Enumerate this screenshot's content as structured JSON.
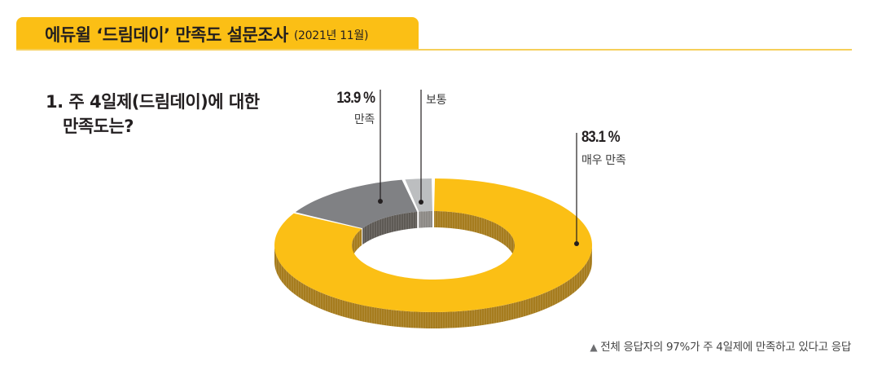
{
  "header": {
    "title": "에듀윌 ‘드림데이’ 만족도 설문조사",
    "date": "(2021년 11월)"
  },
  "question": {
    "line1": "1. 주 4일제(드림데이)에 대한",
    "line2": "만족도는?"
  },
  "labels": {
    "very_satisfied": {
      "pct": "83.1 %",
      "name": "매우 만족"
    },
    "satisfied": {
      "pct": "13.9 %",
      "name": "만족"
    },
    "neutral": {
      "name": "보통"
    }
  },
  "footnote": {
    "icon": "triangle-up-icon",
    "marker": "▲",
    "text": "전체 응답자의 97%가 주 4일제에 만족하고 있다고 응답"
  },
  "colors": {
    "accent": "#fbbf15",
    "rule": "#f6cf5a",
    "very_satisfied": "#fbbf15",
    "very_satisfied_side": "#a67c1e",
    "satisfied": "#808184",
    "satisfied_side": "#5e5a55",
    "neutral": "#bcbec0",
    "neutral_side": "#8d8a86",
    "leader": "#231f20"
  },
  "chart_data": {
    "type": "pie",
    "subtype": "3d-donut",
    "title": "1. 주 4일제(드림데이)에 대한 만족도는?",
    "categories": [
      "매우 만족",
      "만족",
      "보통"
    ],
    "values": [
      83.1,
      13.9,
      3.0
    ],
    "value_labels": [
      "83.1 %",
      "13.9 %",
      ""
    ],
    "unit": "%",
    "annotation": "전체 응답자의 97%가 주 4일제에 만족하고 있다고 응답",
    "start_angle_deg": 0,
    "direction": "clockwise",
    "legend": "none (leader-line labels)"
  }
}
